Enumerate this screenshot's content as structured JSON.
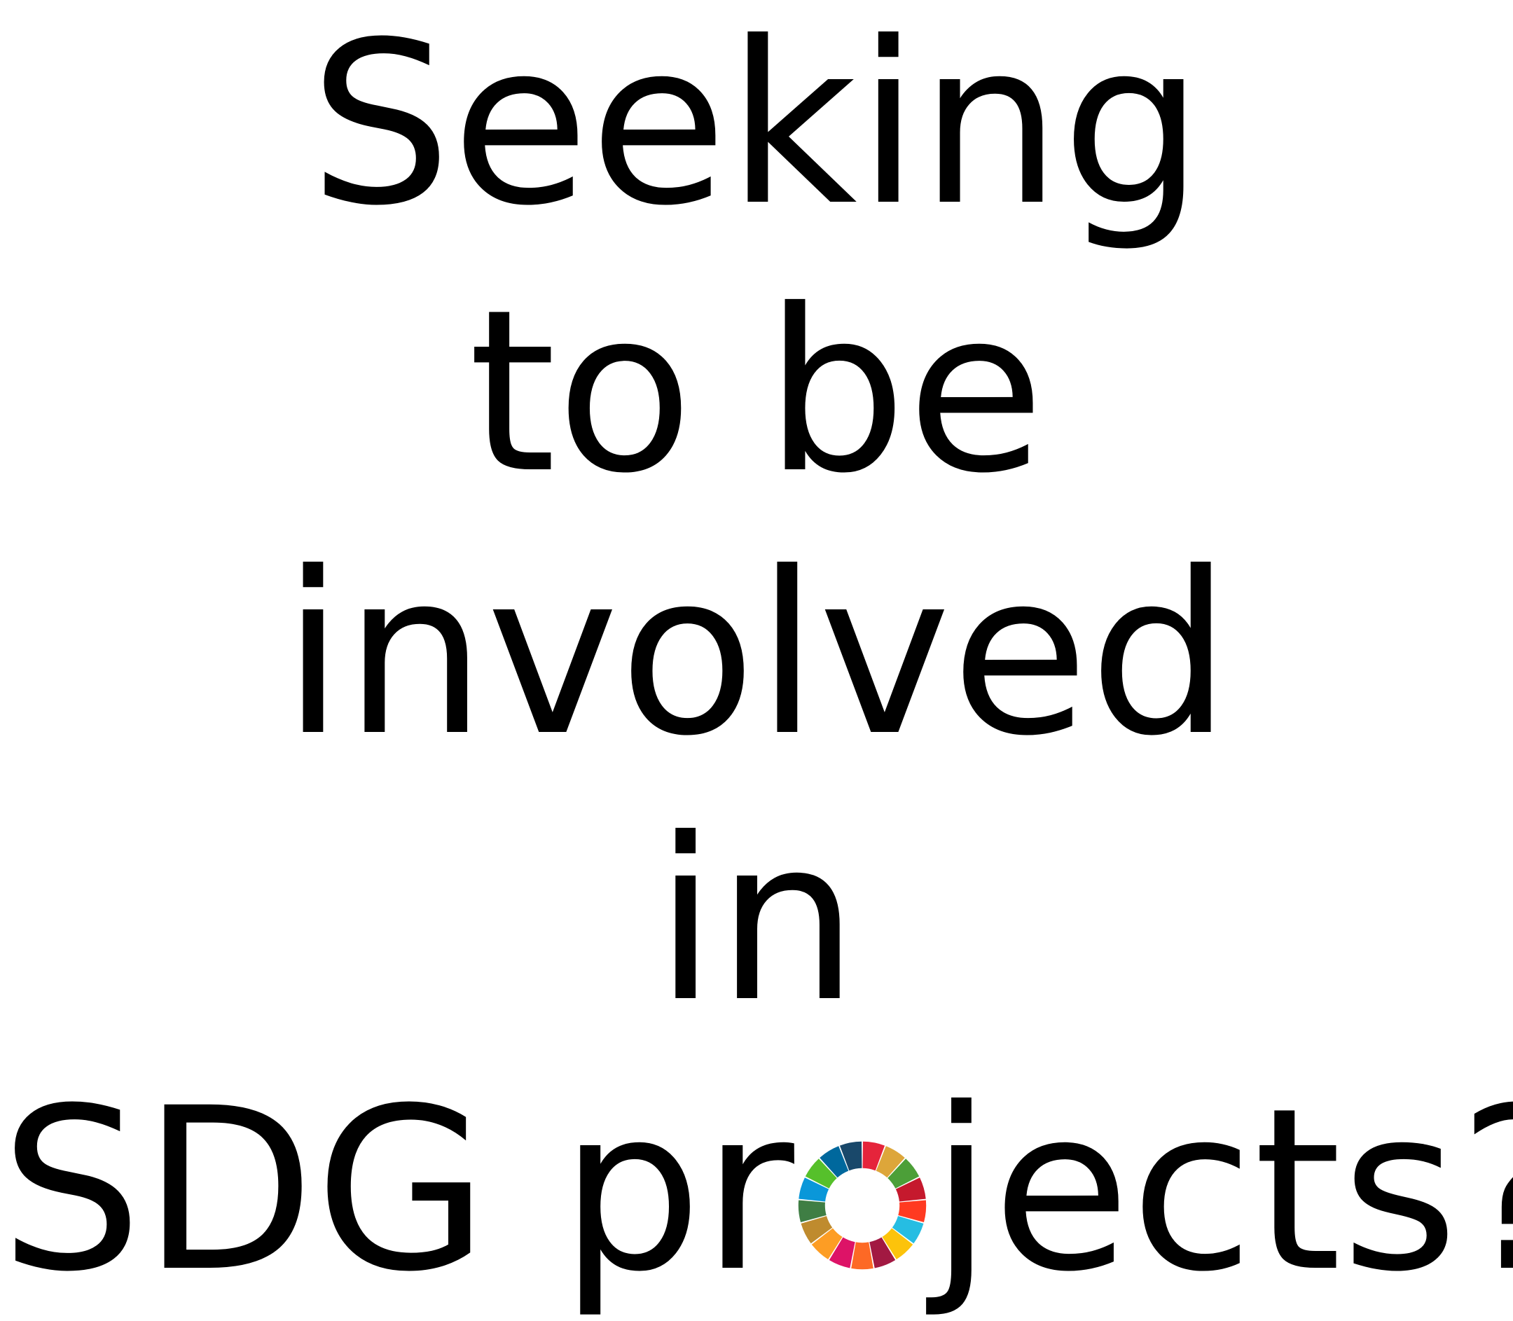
{
  "headline": {
    "line1": "Seeking",
    "line2": "to be",
    "line3": "involved",
    "line4": "in",
    "line5_before": "SDG pr",
    "line5_after": "jects?"
  },
  "sdg_wheel": {
    "icon": "sdg-color-wheel-icon",
    "colors": [
      "#E5243B",
      "#DDA63A",
      "#4C9F38",
      "#C5192D",
      "#FF3A21",
      "#26BDE2",
      "#FCC30B",
      "#A21942",
      "#FD6925",
      "#DD1367",
      "#FD9D24",
      "#BF8B2E",
      "#3F7E44",
      "#0A97D9",
      "#56C02B",
      "#00689D",
      "#19486A"
    ]
  }
}
